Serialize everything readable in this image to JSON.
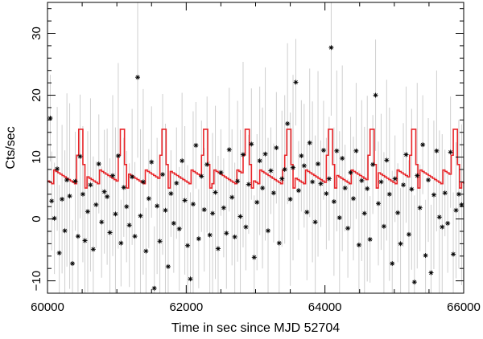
{
  "chart_data": {
    "type": "scatter",
    "xlabel": "Time in sec since MJD 52704",
    "ylabel": "Cts/sec",
    "xlim": [
      60000,
      66000
    ],
    "ylim": [
      -12,
      35
    ],
    "x_ticks": [
      60000,
      62000,
      64000,
      66000
    ],
    "x_tick_labels": [
      "60000",
      "62000",
      "64000",
      "66000"
    ],
    "y_ticks": [
      -10,
      0,
      10,
      20,
      30
    ],
    "y_tick_labels": [
      "−10",
      "0",
      "10",
      "20",
      "30"
    ],
    "grid": false,
    "legend": "none",
    "colors": {
      "points": "#000000",
      "error_bars": "#cfcfcf",
      "model": "#e8262a"
    },
    "series": [
      {
        "type": "scatter",
        "marker": "asterisk",
        "points": [
          [
            60040,
            16.3
          ],
          [
            60060,
            2.9
          ],
          [
            60100,
            0.1
          ],
          [
            60140,
            8.1
          ],
          [
            60170,
            -5.5
          ],
          [
            60210,
            3.2
          ],
          [
            60250,
            -1.9
          ],
          [
            60280,
            6.3
          ],
          [
            60320,
            3.7
          ],
          [
            60360,
            -7.2
          ],
          [
            60400,
            6.1
          ],
          [
            60440,
            -2.8
          ],
          [
            60470,
            10.1
          ],
          [
            60510,
            4.0
          ],
          [
            60540,
            -3.5
          ],
          [
            60580,
            1.2
          ],
          [
            60620,
            5.5
          ],
          [
            60660,
            -4.9
          ],
          [
            60700,
            2.3
          ],
          [
            60740,
            8.9
          ],
          [
            60780,
            -0.5
          ],
          [
            60820,
            4.4
          ],
          [
            60860,
            3.6
          ],
          [
            60900,
            -2.2
          ],
          [
            60940,
            7.0
          ],
          [
            60980,
            0.8
          ],
          [
            61020,
            10.2
          ],
          [
            61060,
            -3.9
          ],
          [
            61100,
            5.1
          ],
          [
            61140,
            2.0
          ],
          [
            61180,
            -1.0
          ],
          [
            61220,
            6.8
          ],
          [
            61260,
            -2.8
          ],
          [
            61300,
            22.9
          ],
          [
            61340,
            0.5
          ],
          [
            61380,
            6.0
          ],
          [
            61420,
            -5.2
          ],
          [
            61460,
            3.3
          ],
          [
            61500,
            9.2
          ],
          [
            61540,
            -11.2
          ],
          [
            61580,
            2.1
          ],
          [
            61620,
            -3.6
          ],
          [
            61660,
            7.2
          ],
          [
            61700,
            1.4
          ],
          [
            61740,
            -7.7
          ],
          [
            61780,
            4.1
          ],
          [
            61820,
            -0.7
          ],
          [
            61860,
            5.8
          ],
          [
            61900,
            -1.6
          ],
          [
            61940,
            9.4
          ],
          [
            61980,
            3.0
          ],
          [
            62020,
            -4.3
          ],
          [
            62060,
            -9.7
          ],
          [
            62100,
            2.4
          ],
          [
            62140,
            11.9
          ],
          [
            62180,
            -3.2
          ],
          [
            62220,
            6.9
          ],
          [
            62260,
            1.5
          ],
          [
            62300,
            8.8
          ],
          [
            62340,
            -2.6
          ],
          [
            62380,
            0.9
          ],
          [
            62420,
            4.3
          ],
          [
            62460,
            -4.8
          ],
          [
            62500,
            7.5
          ],
          [
            62540,
            1.8
          ],
          [
            62580,
            -2.3
          ],
          [
            62620,
            11.2
          ],
          [
            62660,
            3.5
          ],
          [
            62700,
            -2.9
          ],
          [
            62740,
            6.1
          ],
          [
            62780,
            0.4
          ],
          [
            62820,
            10.4
          ],
          [
            62860,
            -1.3
          ],
          [
            62900,
            5.6
          ],
          [
            62940,
            12.1
          ],
          [
            62980,
            -6.2
          ],
          [
            63020,
            2.7
          ],
          [
            63060,
            9.4
          ],
          [
            63100,
            5.0
          ],
          [
            63140,
            10.5
          ],
          [
            63180,
            -1.9
          ],
          [
            63220,
            7.8
          ],
          [
            63260,
            4.2
          ],
          [
            63300,
            11.5
          ],
          [
            63340,
            -3.9
          ],
          [
            63380,
            6.5
          ],
          [
            63420,
            8.0
          ],
          [
            63460,
            15.4
          ],
          [
            63500,
            3.2
          ],
          [
            63540,
            8.3
          ],
          [
            63580,
            22.1
          ],
          [
            63620,
            4.6
          ],
          [
            63660,
            10.2
          ],
          [
            63700,
            8.6
          ],
          [
            63740,
            1.1
          ],
          [
            63780,
            12.3
          ],
          [
            63820,
            6.0
          ],
          [
            63860,
            -0.5
          ],
          [
            63900,
            8.9
          ],
          [
            63940,
            5.7
          ],
          [
            63980,
            11.1
          ],
          [
            64020,
            4.1
          ],
          [
            64060,
            6.5
          ],
          [
            64090,
            27.7
          ],
          [
            64130,
            2.8
          ],
          [
            64170,
            11.0
          ],
          [
            64210,
            0.2
          ],
          [
            64250,
            9.8
          ],
          [
            64290,
            5.0
          ],
          [
            64330,
            -1.5
          ],
          [
            64370,
            7.5
          ],
          [
            64410,
            3.3
          ],
          [
            64450,
            11.0
          ],
          [
            64490,
            -4.2
          ],
          [
            64530,
            6.2
          ],
          [
            64570,
            0.9
          ],
          [
            64610,
            4.9
          ],
          [
            64650,
            -3.3
          ],
          [
            64690,
            8.8
          ],
          [
            64730,
            20.0
          ],
          [
            64770,
            2.5
          ],
          [
            64810,
            6.0
          ],
          [
            64850,
            -1.2
          ],
          [
            64890,
            9.5
          ],
          [
            64930,
            4.0
          ],
          [
            64970,
            -7.2
          ],
          [
            65010,
            6.5
          ],
          [
            65050,
            1.0
          ],
          [
            65090,
            -4.0
          ],
          [
            65130,
            5.5
          ],
          [
            65170,
            10.4
          ],
          [
            65210,
            -2.5
          ],
          [
            65250,
            4.8
          ],
          [
            65290,
            -10.2
          ],
          [
            65330,
            7.0
          ],
          [
            65370,
            1.8
          ],
          [
            65410,
            12.0
          ],
          [
            65450,
            -5.9
          ],
          [
            65490,
            6.3
          ],
          [
            65530,
            -8.7
          ],
          [
            65570,
            3.9
          ],
          [
            65610,
            11.0
          ],
          [
            65650,
            0.3
          ],
          [
            65690,
            -1.3
          ],
          [
            65730,
            4.2
          ],
          [
            65770,
            -0.7
          ],
          [
            65810,
            10.8
          ],
          [
            65850,
            -5.7
          ],
          [
            65890,
            1.4
          ],
          [
            65930,
            4.0
          ],
          [
            65970,
            2.3
          ]
        ]
      },
      {
        "type": "step",
        "name": "",
        "period": 600,
        "phase_peak": 60470,
        "peak_value": 14.5,
        "base_value": 6.8
      }
    ]
  }
}
